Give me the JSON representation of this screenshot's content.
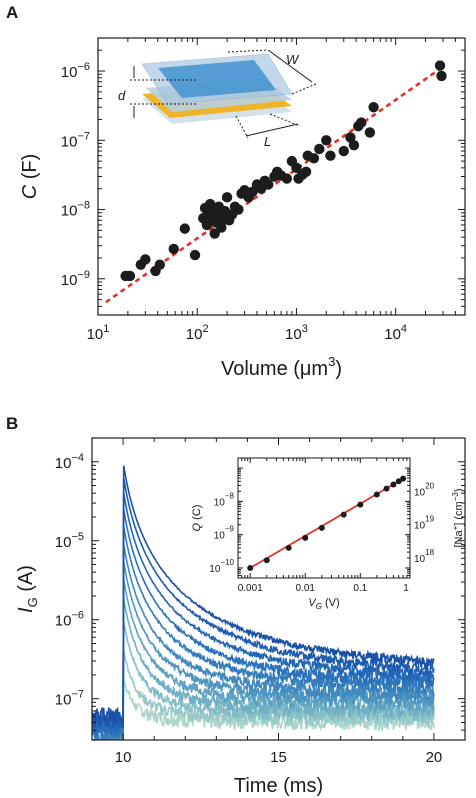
{
  "chart_data": [
    {
      "panel": "A",
      "type": "scatter",
      "xscale": "log",
      "yscale": "log",
      "xlim": [
        10,
        50000
      ],
      "ylim": [
        3e-10,
        3e-06
      ],
      "xlabel": "Volume (μm",
      "xlabel_sup": "3",
      "xlabel_end": ")",
      "ylabel": "C",
      "ylabel_unit": "(F)",
      "x_ticks": [
        {
          "value": 10,
          "base": "10",
          "exp": "1"
        },
        {
          "value": 100,
          "base": "10",
          "exp": "2"
        },
        {
          "value": 1000,
          "base": "10",
          "exp": "3"
        },
        {
          "value": 10000,
          "base": "10",
          "exp": "4"
        }
      ],
      "y_ticks": [
        {
          "value": 1e-09,
          "base": "10",
          "exp": "−9"
        },
        {
          "value": 1e-08,
          "base": "10",
          "exp": "−8"
        },
        {
          "value": 1e-07,
          "base": "10",
          "exp": "−7"
        },
        {
          "value": 1e-06,
          "base": "10",
          "exp": "−6"
        }
      ],
      "fit_line": {
        "x": [
          12,
          30000
        ],
        "y": [
          4.6e-10,
          1.15e-06
        ],
        "color": "#e8302a",
        "style": "dashed"
      },
      "points": [
        [
          19,
          1.1e-09
        ],
        [
          21,
          1.1e-09
        ],
        [
          27,
          1.6e-09
        ],
        [
          30,
          1.9e-09
        ],
        [
          38,
          1.3e-09
        ],
        [
          42,
          1.6e-09
        ],
        [
          58,
          2.7e-09
        ],
        [
          75,
          5.3e-09
        ],
        [
          95,
          2.2e-09
        ],
        [
          115,
          7.5e-09
        ],
        [
          120,
          1.05e-08
        ],
        [
          125,
          6e-09
        ],
        [
          130,
          9e-09
        ],
        [
          135,
          1.2e-08
        ],
        [
          140,
          7e-09
        ],
        [
          145,
          1e-08
        ],
        [
          150,
          4.5e-09
        ],
        [
          155,
          6.5e-09
        ],
        [
          160,
          9e-09
        ],
        [
          165,
          1.1e-08
        ],
        [
          170,
          8e-09
        ],
        [
          175,
          5.5e-09
        ],
        [
          180,
          7e-09
        ],
        [
          190,
          9.5e-09
        ],
        [
          200,
          1.5e-08
        ],
        [
          210,
          7e-09
        ],
        [
          225,
          8.5e-09
        ],
        [
          240,
          1.1e-08
        ],
        [
          260,
          1e-08
        ],
        [
          280,
          1.7e-08
        ],
        [
          300,
          1.9e-08
        ],
        [
          330,
          1.5e-08
        ],
        [
          360,
          1.8e-08
        ],
        [
          400,
          2.3e-08
        ],
        [
          440,
          2e-08
        ],
        [
          480,
          2.6e-08
        ],
        [
          520,
          2.3e-08
        ],
        [
          600,
          3e-08
        ],
        [
          640,
          3.5e-08
        ],
        [
          700,
          3.1e-08
        ],
        [
          800,
          2.8e-08
        ],
        [
          900,
          5e-08
        ],
        [
          1000,
          4e-08
        ],
        [
          1050,
          2.8e-08
        ],
        [
          1150,
          3.2e-08
        ],
        [
          1250,
          3.5e-08
        ],
        [
          1300,
          6e-08
        ],
        [
          1500,
          5.5e-08
        ],
        [
          1700,
          7.5e-08
        ],
        [
          2000,
          1e-07
        ],
        [
          2200,
          6e-08
        ],
        [
          3000,
          7e-08
        ],
        [
          3500,
          1.1e-07
        ],
        [
          3800,
          8.5e-08
        ],
        [
          4200,
          1.6e-07
        ],
        [
          4500,
          1.8e-07
        ],
        [
          5500,
          1.3e-07
        ],
        [
          6000,
          3e-07
        ],
        [
          28000,
          1.2e-06
        ],
        [
          29000,
          8.5e-07
        ]
      ],
      "marker_color": "#1c1c1c",
      "inset_schematic_labels": {
        "W": "W",
        "d": "d",
        "L": "L"
      }
    },
    {
      "panel": "B",
      "type": "line",
      "yscale": "log",
      "xlim": [
        9,
        21
      ],
      "ylim": [
        3e-08,
        0.0002
      ],
      "xlabel": "Time (ms)",
      "ylabel": "I",
      "ylabel_sub": "G",
      "ylabel_unit": "(A)",
      "x_ticks": [
        {
          "value": 10,
          "label": "10"
        },
        {
          "value": 15,
          "label": "15"
        },
        {
          "value": 20,
          "label": "20"
        }
      ],
      "y_ticks": [
        {
          "value": 1e-07,
          "base": "10",
          "exp": "−7"
        },
        {
          "value": 1e-06,
          "base": "10",
          "exp": "−6"
        },
        {
          "value": 1e-05,
          "base": "10",
          "exp": "−5"
        },
        {
          "value": 0.0001,
          "base": "10",
          "exp": "−4"
        }
      ],
      "pulse_start_ms": 10,
      "pulse_end_ms": 20,
      "series": [
        {
          "color": "#1b52a8",
          "peak": 0.0001,
          "tail": 1.6e-07
        },
        {
          "color": "#1e5cb0",
          "peak": 7e-05,
          "tail": 1.4e-07
        },
        {
          "color": "#2267b6",
          "peak": 4.5e-05,
          "tail": 1.25e-07
        },
        {
          "color": "#2a72ba",
          "peak": 2.8e-05,
          "tail": 1.1e-07
        },
        {
          "color": "#347dbc",
          "peak": 1.7e-05,
          "tail": 1e-07
        },
        {
          "color": "#4088bd",
          "peak": 1e-05,
          "tail": 8.5e-08
        },
        {
          "color": "#4e95c0",
          "peak": 6e-06,
          "tail": 7.5e-08
        },
        {
          "color": "#5ea2c2",
          "peak": 3.5e-06,
          "tail": 6.5e-08
        },
        {
          "color": "#70afc4",
          "peak": 2e-06,
          "tail": 5.5e-08
        },
        {
          "color": "#84bdc6",
          "peak": 1e-06,
          "tail": 5e-08
        },
        {
          "color": "#98cac8",
          "peak": 4e-07,
          "tail": 4.5e-08
        },
        {
          "color": "#acd6ca",
          "peak": 1.5e-07,
          "tail": 4e-08
        }
      ],
      "inset": {
        "type": "scatter",
        "xscale": "log",
        "yscale": "log",
        "xlim": [
          0.0006,
          0.8
        ],
        "ylim": [
          5e-11,
          2e-07
        ],
        "xlabel": "V",
        "xlabel_sub": "G",
        "xlabel_unit": "(V)",
        "ylabel": "Q",
        "ylabel_unit": "(C)",
        "y2label": "[Na",
        "y2label_sup": "+",
        "y2label_mid": "] (cm",
        "y2label_sup2": "−3",
        "y2label_end": ")",
        "x_ticks": [
          {
            "value": 0.001,
            "label": "0.001"
          },
          {
            "value": 0.01,
            "label": "0.01"
          },
          {
            "value": 0.1,
            "label": "0.1"
          },
          {
            "value": 1,
            "label": "1"
          }
        ],
        "y_ticks": [
          {
            "value": 1e-10,
            "base": "10",
            "exp": "−10"
          },
          {
            "value": 1e-09,
            "base": "10",
            "exp": "−9"
          },
          {
            "value": 1e-08,
            "base": "10",
            "exp": "−8"
          }
        ],
        "y2_ticks": [
          {
            "value": 2e-10,
            "base": "10",
            "exp": "18"
          },
          {
            "value": 2e-09,
            "base": "10",
            "exp": "19"
          },
          {
            "value": 2e-08,
            "base": "10",
            "exp": "20"
          }
        ],
        "points": [
          [
            0.001,
            1e-10
          ],
          [
            0.002,
            1.7e-10
          ],
          [
            0.005,
            4e-10
          ],
          [
            0.01,
            8e-10
          ],
          [
            0.02,
            1.6e-09
          ],
          [
            0.05,
            4e-09
          ],
          [
            0.1,
            8e-09
          ],
          [
            0.2,
            1.6e-08
          ],
          [
            0.3,
            2.4e-08
          ],
          [
            0.4,
            3.2e-08
          ],
          [
            0.5,
            4e-08
          ],
          [
            0.6,
            4.8e-08
          ]
        ],
        "fit_color": "#e8302a",
        "marker_color": "#1c1c1c"
      }
    }
  ]
}
